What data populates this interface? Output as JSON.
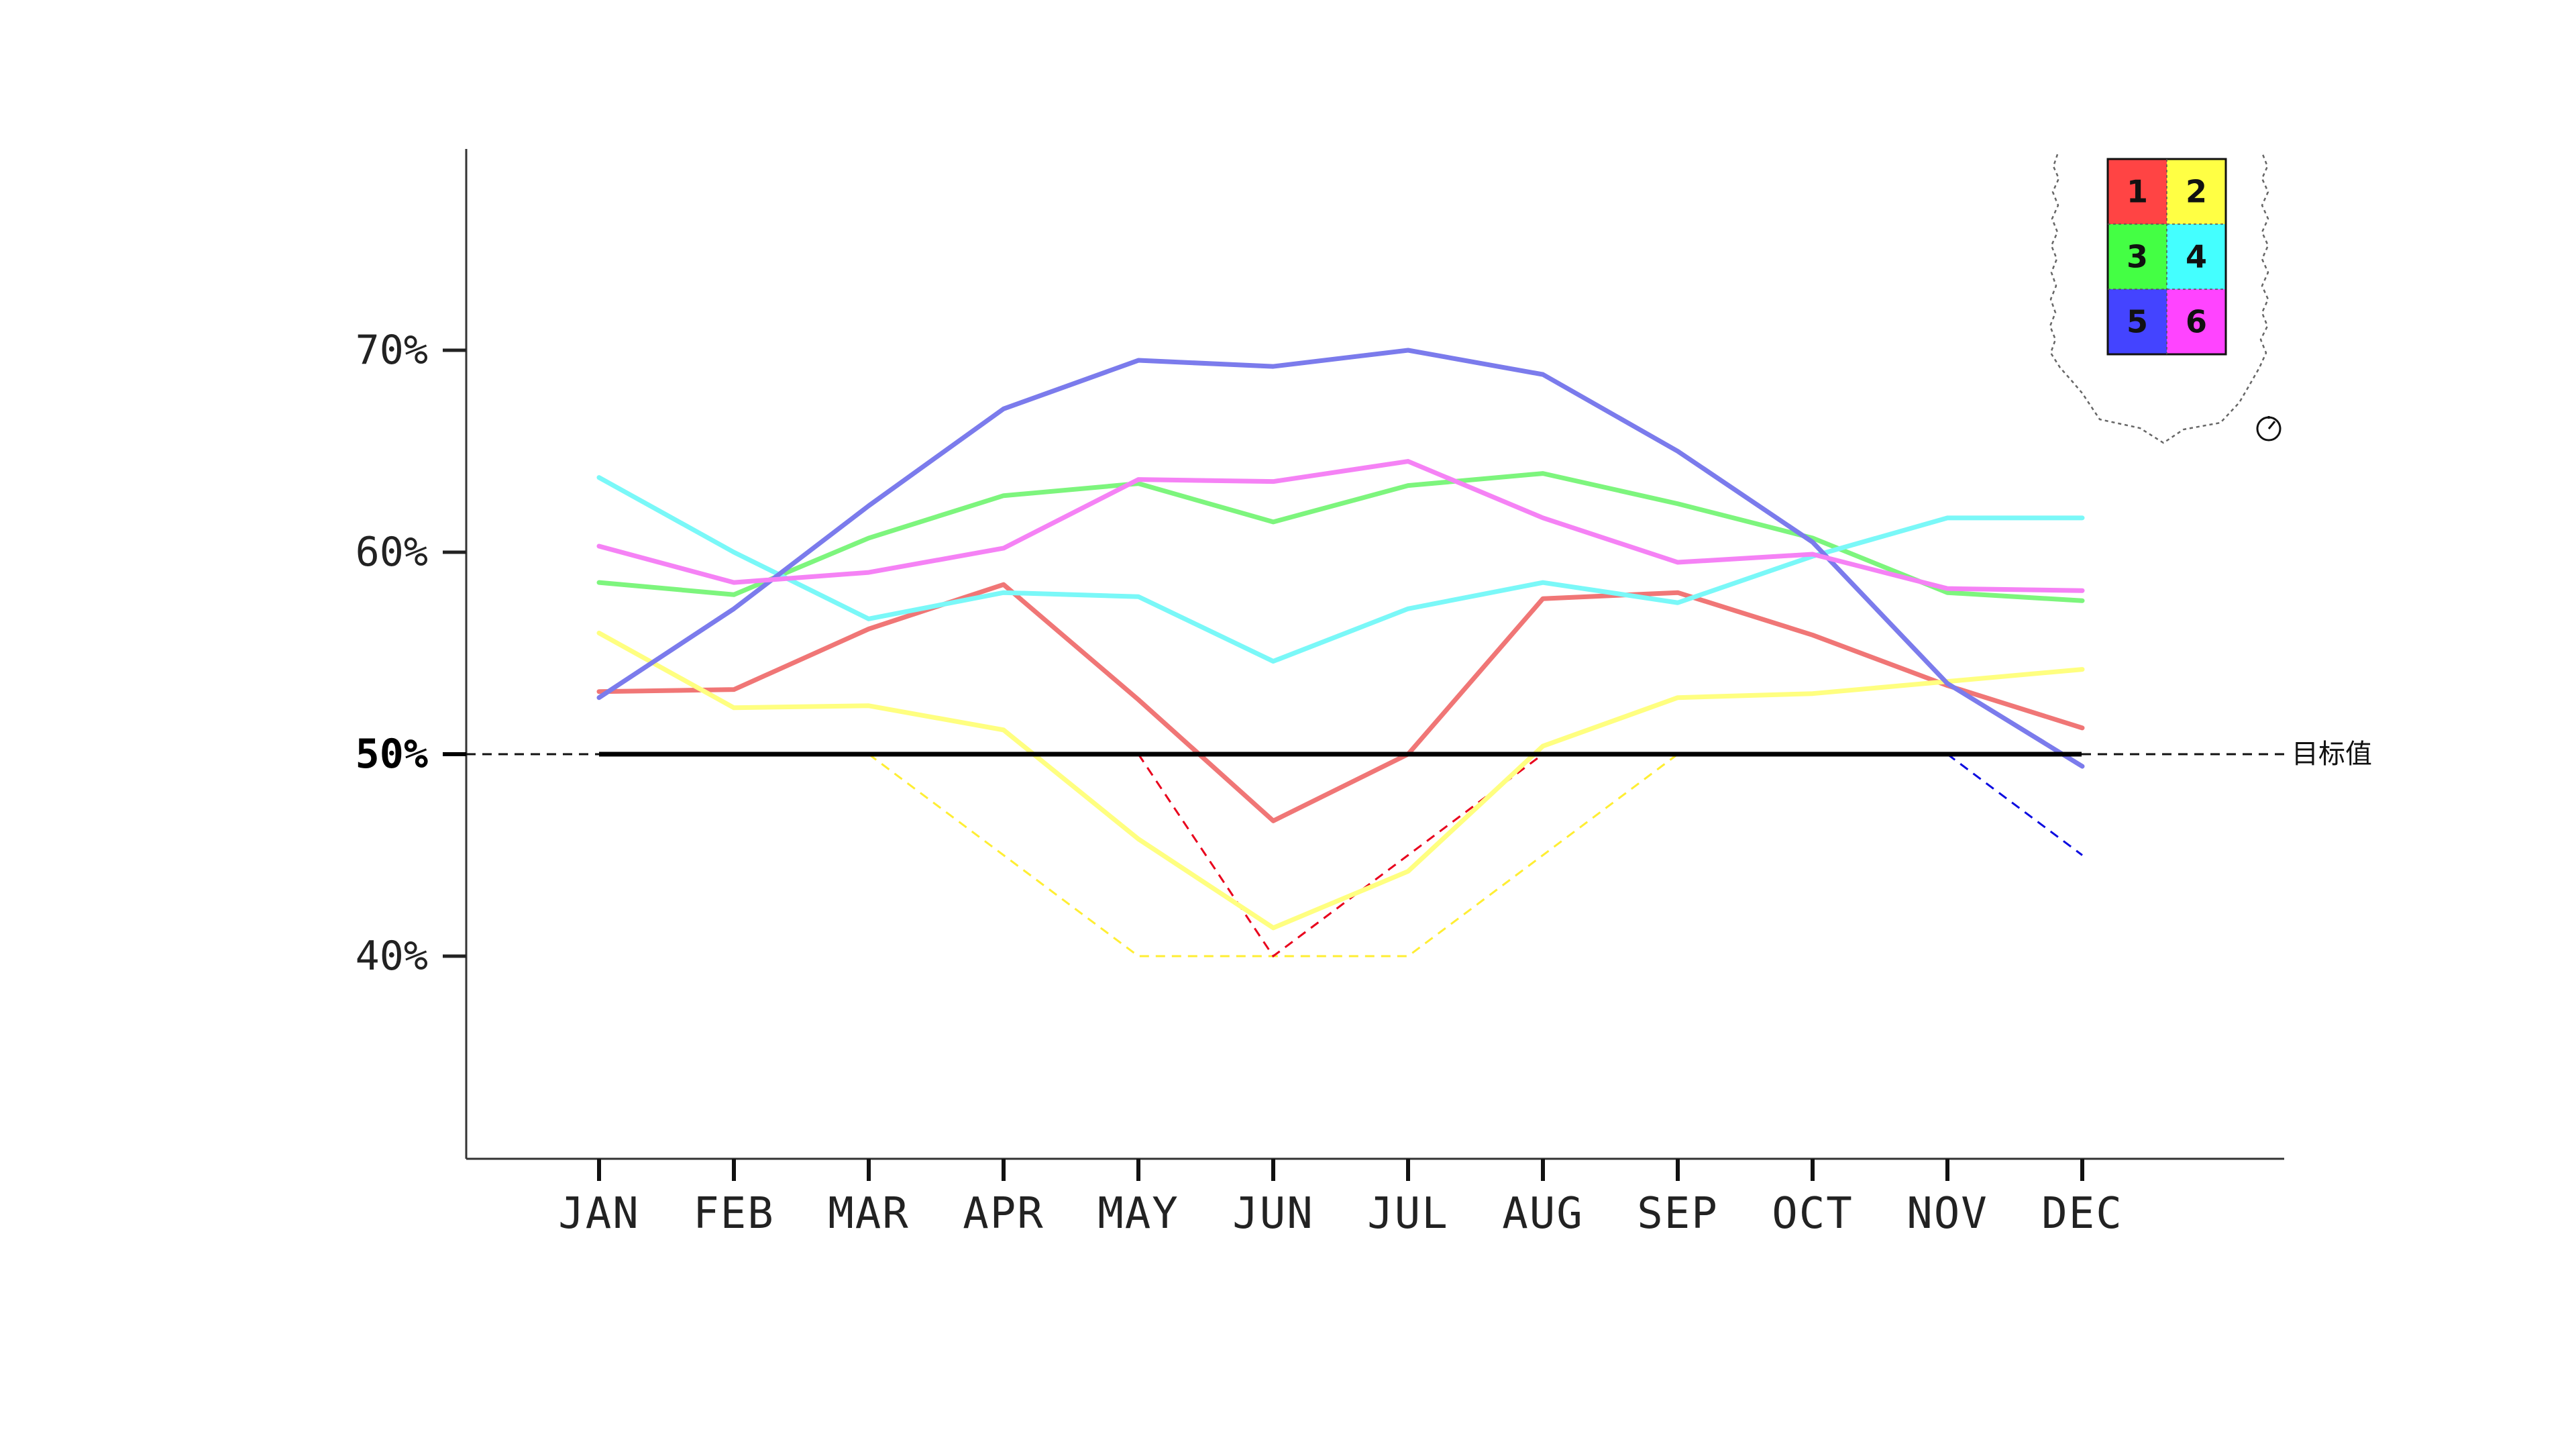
{
  "chart_data": {
    "type": "line",
    "categories": [
      "JAN",
      "FEB",
      "MAR",
      "APR",
      "MAY",
      "JUN",
      "JUL",
      "AUG",
      "SEP",
      "OCT",
      "NOV",
      "DEC"
    ],
    "ylim": [
      30,
      80
    ],
    "yticks": [
      {
        "value": 40,
        "label": "40%",
        "strong": false
      },
      {
        "value": 50,
        "label": "50%",
        "strong": true
      },
      {
        "value": 60,
        "label": "60%",
        "strong": false
      },
      {
        "value": 70,
        "label": "70%",
        "strong": false
      }
    ],
    "target": {
      "value": 50,
      "label": "目标值"
    },
    "grid": false,
    "legend_position": "top-right",
    "series": [
      {
        "name": "1",
        "color": "#F07676",
        "swatch": "#FF4444",
        "dash_color": "#E8001C",
        "values": [
          53.1,
          53.2,
          56.2,
          58.4,
          52.7,
          46.7,
          50.0,
          57.7,
          58.0,
          55.9,
          53.4,
          51.3
        ]
      },
      {
        "name": "2",
        "color": "#FFFF80",
        "swatch": "#FFFF44",
        "dash_color": "#FFEE33",
        "values": [
          56.0,
          52.3,
          52.4,
          51.2,
          45.8,
          41.4,
          44.2,
          50.4,
          52.8,
          53.0,
          53.6,
          54.2
        ]
      },
      {
        "name": "3",
        "color": "#7DF57D",
        "swatch": "#44FF44",
        "dash_color": "#44DD44",
        "values": [
          58.5,
          57.9,
          60.7,
          62.8,
          63.4,
          61.5,
          63.3,
          63.9,
          62.4,
          60.7,
          58.0,
          57.6
        ]
      },
      {
        "name": "4",
        "color": "#7AF8F8",
        "swatch": "#44FFFF",
        "dash_color": "#22DDDD",
        "values": [
          63.7,
          60.0,
          56.7,
          58.0,
          57.8,
          54.6,
          57.2,
          58.5,
          57.5,
          59.8,
          61.7,
          61.7
        ]
      },
      {
        "name": "5",
        "color": "#7B7BEC",
        "swatch": "#4444FF",
        "dash_color": "#0A0AE0",
        "values": [
          52.8,
          57.2,
          62.3,
          67.1,
          69.5,
          69.2,
          70.0,
          68.8,
          65.0,
          60.5,
          53.5,
          49.4
        ]
      },
      {
        "name": "6",
        "color": "#F582F5",
        "swatch": "#FF44FF",
        "dash_color": "#EE33EE",
        "values": [
          60.3,
          58.5,
          59.0,
          60.2,
          63.6,
          63.5,
          64.5,
          61.7,
          59.5,
          59.9,
          58.2,
          58.1
        ]
      }
    ],
    "below_target_dashed": [
      {
        "series": "2",
        "values": [
          null,
          null,
          50.0,
          45.0,
          40.0,
          40.0,
          40.0,
          45.0,
          50.0,
          null,
          null,
          null
        ]
      },
      {
        "series": "1",
        "values": [
          null,
          null,
          null,
          null,
          50.0,
          40.0,
          45.0,
          50.0,
          null,
          null,
          null,
          null
        ]
      },
      {
        "series": "5",
        "values": [
          null,
          null,
          null,
          null,
          null,
          null,
          null,
          null,
          null,
          null,
          50.0,
          45.0
        ]
      }
    ]
  }
}
